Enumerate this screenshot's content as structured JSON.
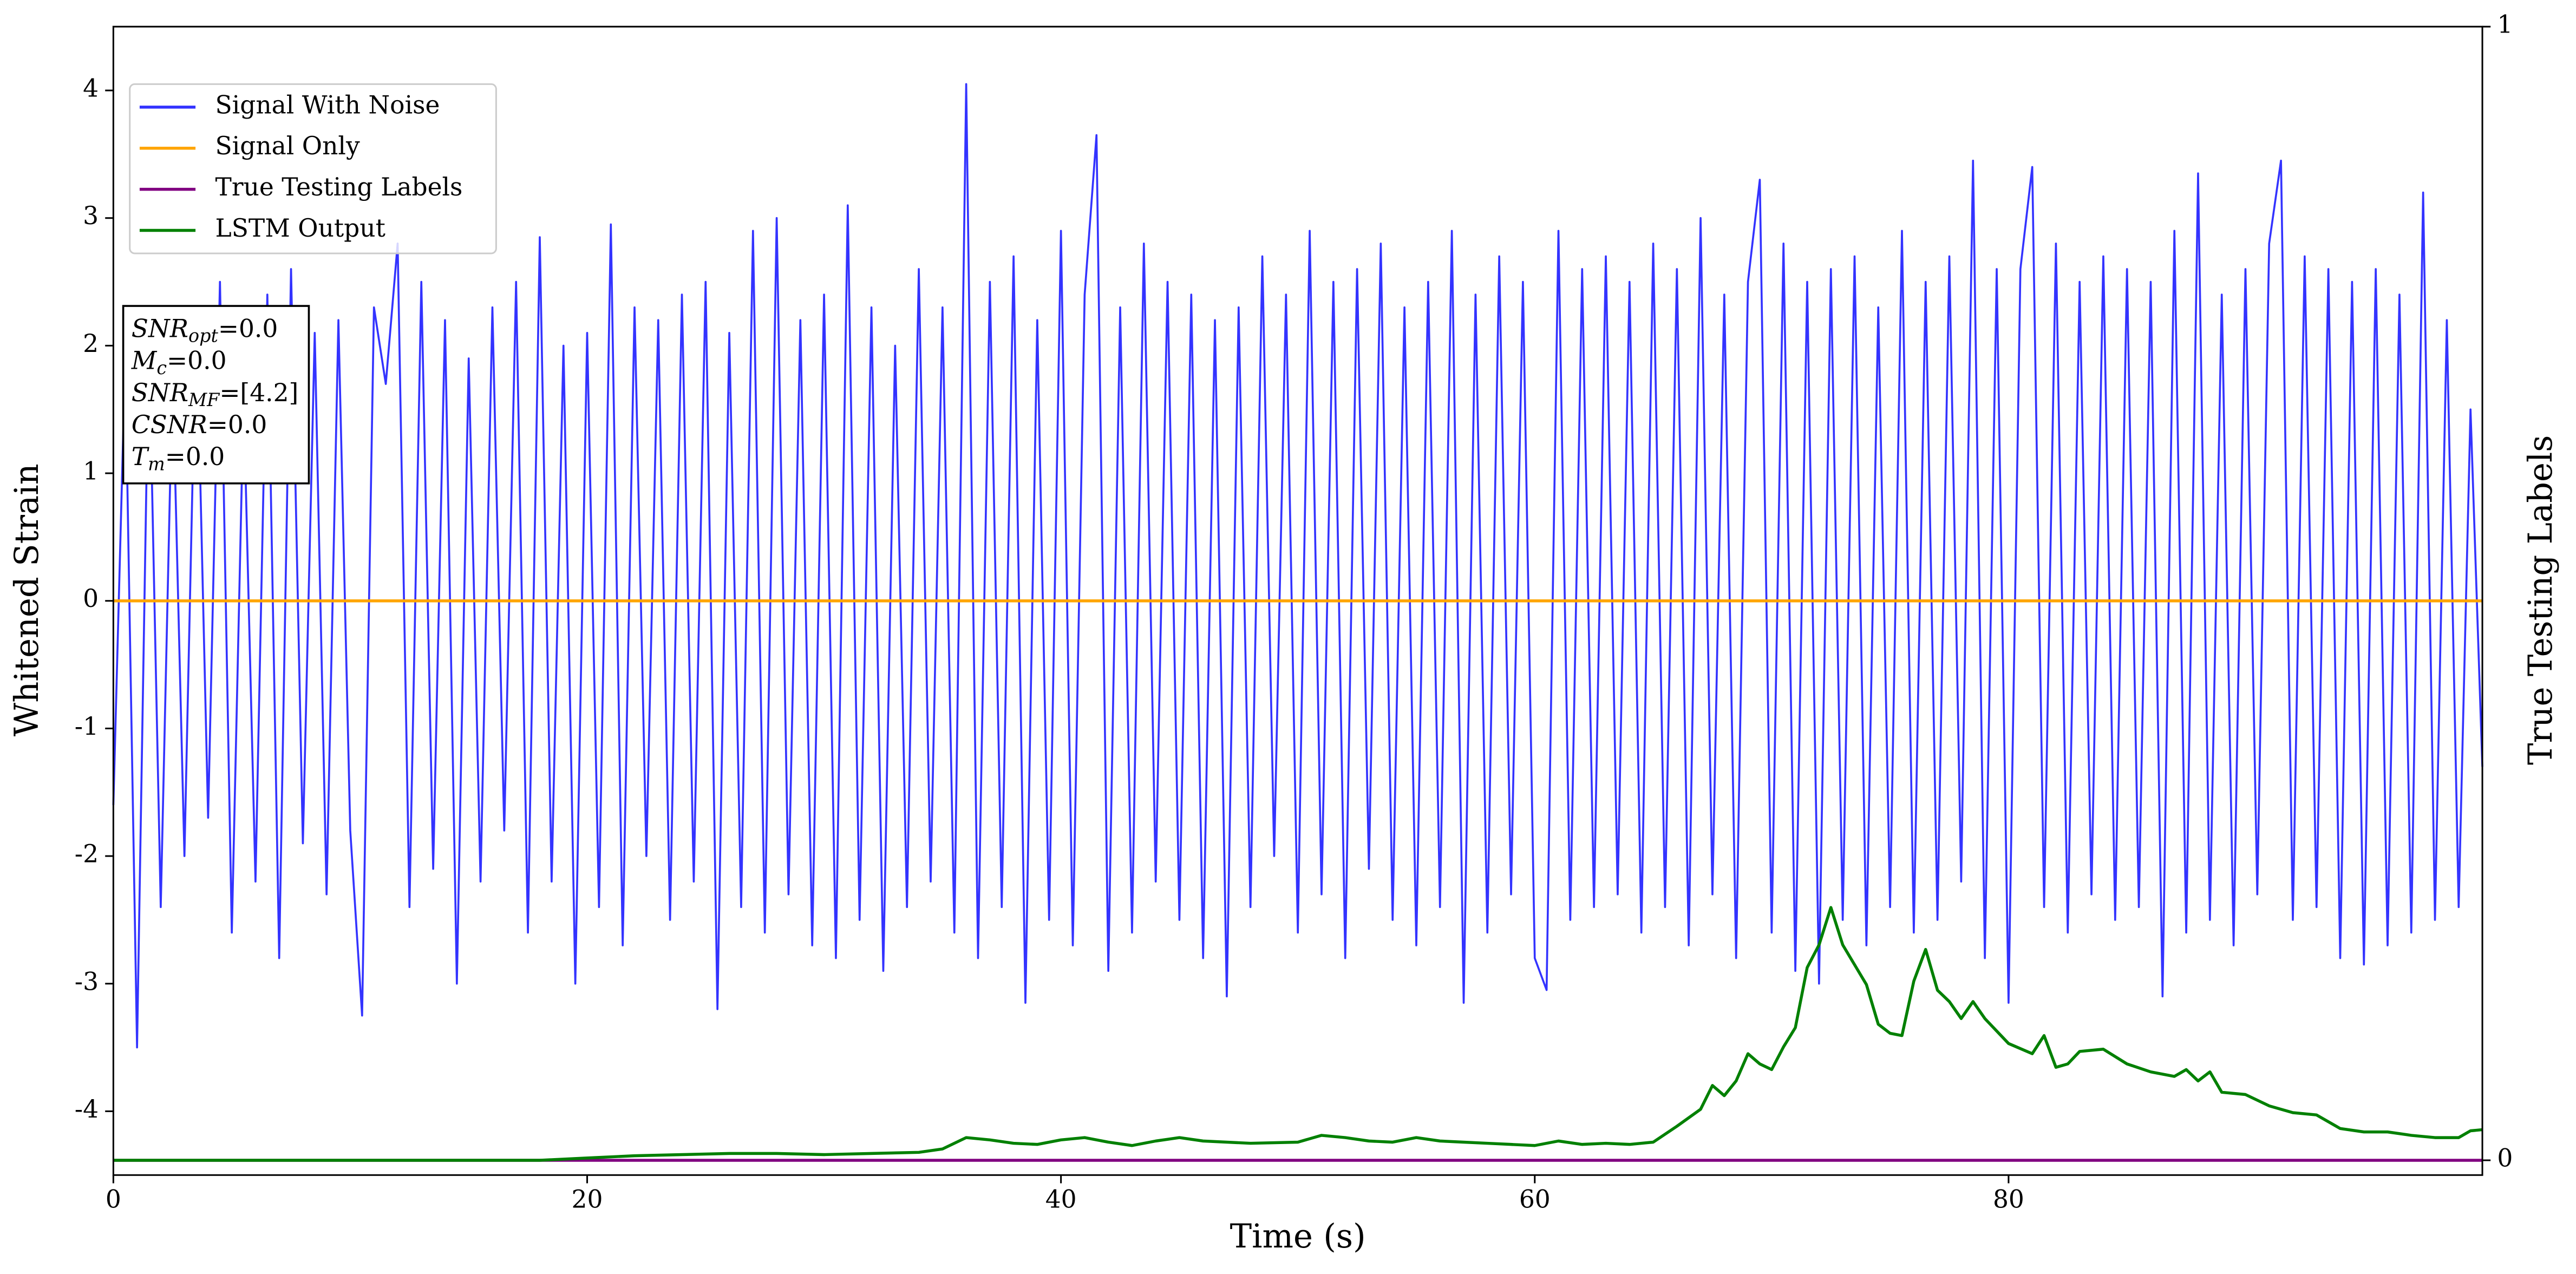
{
  "chart_data": {
    "type": "line",
    "xlabel": "Time (s)",
    "ylabel": "Whitened Strain",
    "y2label": "True Testing Labels",
    "xlim": [
      0,
      100
    ],
    "ylim": [
      -4.5,
      4.5
    ],
    "y2lim": [
      0,
      1
    ],
    "xticks": [
      0,
      20,
      40,
      60,
      80
    ],
    "yticks": [
      -4,
      -3,
      -2,
      -1,
      0,
      1,
      2,
      3,
      4
    ],
    "y2ticks": [
      0,
      1
    ],
    "legend": "upper left",
    "annotation": [
      {
        "symbol": "SNR",
        "sub": "opt",
        "text": "=0.0"
      },
      {
        "symbol": "M",
        "sub": "c",
        "text": "=0.0"
      },
      {
        "symbol": "SNR",
        "sub": "MF",
        "text": "=[4.2]"
      },
      {
        "symbol": "CSNR",
        "sub": null,
        "text": "=0.0"
      },
      {
        "symbol": "T",
        "sub": "m",
        "text": "=0.0"
      }
    ],
    "series": [
      {
        "name": "Signal With Noise",
        "color": "#3333ff",
        "x": [
          0,
          0.5,
          1,
          1.5,
          2,
          2.5,
          3,
          3.5,
          4,
          4.5,
          5,
          5.5,
          6,
          6.5,
          7,
          7.5,
          8,
          8.5,
          9,
          9.5,
          10,
          10.5,
          11,
          11.5,
          12,
          12.5,
          13,
          13.5,
          14,
          14.5,
          15,
          15.5,
          16,
          16.5,
          17,
          17.5,
          18,
          18.5,
          19,
          19.5,
          20,
          20.5,
          21,
          21.5,
          22,
          22.5,
          23,
          23.5,
          24,
          24.5,
          25,
          25.5,
          26,
          26.5,
          27,
          27.5,
          28,
          28.5,
          29,
          29.5,
          30,
          30.5,
          31,
          31.5,
          32,
          32.5,
          33,
          33.5,
          34,
          34.5,
          35,
          35.5,
          36,
          36.5,
          37,
          37.5,
          38,
          38.5,
          39,
          39.5,
          40,
          40.5,
          41,
          41.5,
          42,
          42.5,
          43,
          43.5,
          44,
          44.5,
          45,
          45.5,
          46,
          46.5,
          47,
          47.5,
          48,
          48.5,
          49,
          49.5,
          50,
          50.5,
          51,
          51.5,
          52,
          52.5,
          53,
          53.5,
          54,
          54.5,
          55,
          55.5,
          56,
          56.5,
          57,
          57.5,
          58,
          58.5,
          59,
          59.5,
          60,
          60.5,
          61,
          61.5,
          62,
          62.5,
          63,
          63.5,
          64,
          64.5,
          65,
          65.5,
          66,
          66.5,
          67,
          67.5,
          68,
          68.5,
          69,
          69.5,
          70,
          70.5,
          71,
          71.5,
          72,
          72.5,
          73,
          73.5,
          74,
          74.5,
          75,
          75.5,
          76,
          76.5,
          77,
          77.5,
          78,
          78.5,
          79,
          79.5,
          80,
          80.5,
          81,
          81.5,
          82,
          82.5,
          83,
          83.5,
          84,
          84.5,
          85,
          85.5,
          86,
          86.5,
          87,
          87.5,
          88,
          88.5,
          89,
          89.5,
          90,
          90.5,
          91,
          91.5,
          92,
          92.5,
          93,
          93.5,
          94,
          94.5,
          95,
          95.5,
          96,
          96.5,
          97,
          97.5,
          98,
          98.5,
          99,
          99.5,
          100
        ],
        "values": [
          -1.6,
          1.9,
          -3.5,
          2.1,
          -2.4,
          1.8,
          -2.0,
          2.3,
          -1.7,
          2.5,
          -2.6,
          1.6,
          -2.2,
          2.4,
          -2.8,
          2.6,
          -1.9,
          2.1,
          -2.3,
          2.2,
          -1.8,
          -3.25,
          2.3,
          1.7,
          2.8,
          -2.4,
          2.5,
          -2.1,
          2.2,
          -3.0,
          1.9,
          -2.2,
          2.3,
          -1.8,
          2.5,
          -2.6,
          2.85,
          -2.2,
          2.0,
          -3.0,
          2.1,
          -2.4,
          2.95,
          -2.7,
          2.3,
          -2.0,
          2.2,
          -2.5,
          2.4,
          -2.2,
          2.5,
          -3.2,
          2.1,
          -2.4,
          2.9,
          -2.6,
          3.0,
          -2.3,
          2.2,
          -2.7,
          2.4,
          -2.8,
          3.1,
          -2.5,
          2.3,
          -2.9,
          2.0,
          -2.4,
          2.6,
          -2.2,
          2.3,
          -2.6,
          4.05,
          -2.8,
          2.5,
          -2.4,
          2.7,
          -3.15,
          2.2,
          -2.5,
          2.9,
          -2.7,
          2.4,
          3.65,
          -2.9,
          2.3,
          -2.6,
          2.8,
          -2.2,
          2.5,
          -2.5,
          2.4,
          -2.8,
          2.2,
          -3.1,
          2.3,
          -2.4,
          2.7,
          -2.0,
          2.4,
          -2.6,
          2.9,
          -2.3,
          2.5,
          -2.8,
          2.6,
          -2.1,
          2.8,
          -2.5,
          2.3,
          -2.7,
          2.5,
          -2.4,
          2.9,
          -3.15,
          2.4,
          -2.6,
          2.7,
          -2.3,
          2.5,
          -2.8,
          -3.05,
          2.9,
          -2.5,
          2.6,
          -2.4,
          2.7,
          -2.3,
          2.5,
          -2.6,
          2.8,
          -2.4,
          2.6,
          -2.7,
          3.0,
          -2.3,
          2.4,
          -2.8,
          2.5,
          3.3,
          -2.6,
          2.8,
          -2.9,
          2.5,
          -3.0,
          2.6,
          -2.5,
          2.7,
          -2.7,
          2.3,
          -2.4,
          2.9,
          -2.6,
          2.5,
          -2.5,
          2.7,
          -2.2,
          3.45,
          -2.8,
          2.6,
          -3.15,
          2.6,
          3.4,
          -2.4,
          2.8,
          -2.6,
          2.5,
          -2.3,
          2.7,
          -2.5,
          2.6,
          -2.4,
          2.5,
          -3.1,
          2.9,
          -2.6,
          3.35,
          -2.5,
          2.4,
          -2.7,
          2.6,
          -2.3,
          2.8,
          3.45,
          -2.5,
          2.7,
          -2.4,
          2.6,
          -2.8,
          2.5,
          -2.85,
          2.6,
          -2.7,
          2.4,
          -2.6,
          3.2,
          -2.5,
          2.2,
          -2.4,
          1.5,
          -1.3
        ]
      },
      {
        "name": "Signal Only",
        "color": "#ffa500",
        "x": [
          0,
          100
        ],
        "values": [
          0,
          0
        ]
      },
      {
        "name": "True Testing Labels",
        "color": "#800080",
        "axis": "y2",
        "x": [
          0,
          100
        ],
        "values": [
          0,
          0
        ]
      },
      {
        "name": "LSTM Output",
        "color": "#008000",
        "axis": "y2",
        "x": [
          0,
          10,
          18,
          20,
          22,
          24,
          26,
          28,
          30,
          32,
          34,
          35,
          36,
          37,
          38,
          39,
          40,
          41,
          42,
          43,
          44,
          45,
          46,
          48,
          50,
          51,
          52,
          53,
          54,
          55,
          56,
          57,
          58,
          59,
          60,
          61,
          62,
          63,
          64,
          65,
          66,
          67,
          67.5,
          68,
          68.5,
          69,
          69.5,
          70,
          70.5,
          71,
          71.5,
          72,
          72.5,
          73,
          74,
          74.5,
          75,
          75.5,
          76,
          76.5,
          77,
          77.5,
          78,
          78.5,
          79,
          80,
          81,
          81.5,
          82,
          82.5,
          83,
          84,
          85,
          86,
          87,
          87.5,
          88,
          88.5,
          89,
          90,
          91,
          92,
          93,
          94,
          95,
          96,
          97,
          98,
          99,
          99.5,
          100
        ],
        "values": [
          0,
          0,
          0,
          0.002,
          0.004,
          0.005,
          0.006,
          0.006,
          0.005,
          0.006,
          0.007,
          0.01,
          0.02,
          0.018,
          0.015,
          0.014,
          0.018,
          0.02,
          0.016,
          0.013,
          0.017,
          0.02,
          0.017,
          0.015,
          0.016,
          0.022,
          0.02,
          0.017,
          0.016,
          0.02,
          0.017,
          0.016,
          0.015,
          0.014,
          0.013,
          0.017,
          0.014,
          0.015,
          0.014,
          0.016,
          0.03,
          0.045,
          0.066,
          0.057,
          0.07,
          0.094,
          0.085,
          0.08,
          0.1,
          0.117,
          0.17,
          0.19,
          0.223,
          0.19,
          0.155,
          0.12,
          0.112,
          0.11,
          0.158,
          0.186,
          0.15,
          0.14,
          0.125,
          0.14,
          0.125,
          0.103,
          0.094,
          0.11,
          0.082,
          0.085,
          0.096,
          0.098,
          0.085,
          0.078,
          0.074,
          0.08,
          0.07,
          0.078,
          0.06,
          0.058,
          0.048,
          0.042,
          0.04,
          0.028,
          0.025,
          0.025,
          0.022,
          0.02,
          0.02,
          0.026,
          0.027
        ]
      }
    ]
  }
}
